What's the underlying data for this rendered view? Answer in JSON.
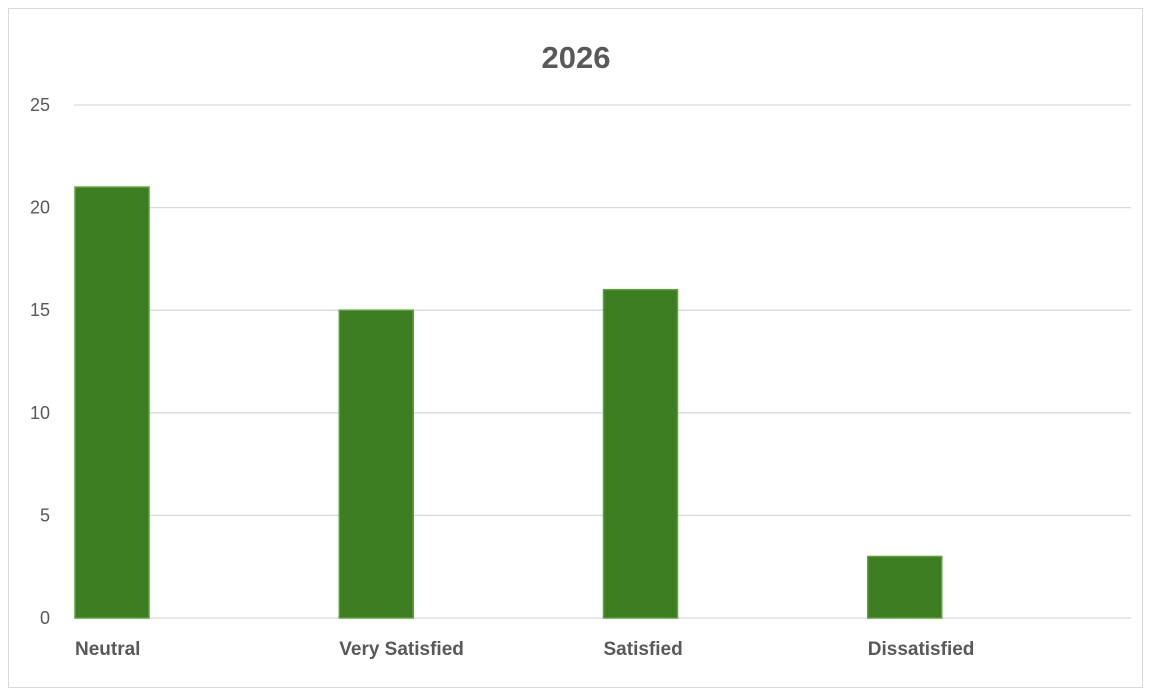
{
  "chart_data": {
    "type": "bar",
    "title": "2026",
    "xlabel": "",
    "ylabel": "",
    "categories": [
      "Neutral",
      "Very Satisfied",
      "Satisfied",
      "Dissatisfied"
    ],
    "values": [
      21,
      15,
      16,
      3
    ],
    "ylim": [
      0,
      25
    ],
    "yticks": [
      "0",
      "5",
      "10",
      "15",
      "20",
      "25"
    ],
    "grid": true,
    "legend": "none",
    "colors": {
      "bar": "#3c7d22",
      "bar_border": "#5aa33a",
      "grid": "#d9d9d9",
      "text": "#595959"
    }
  }
}
